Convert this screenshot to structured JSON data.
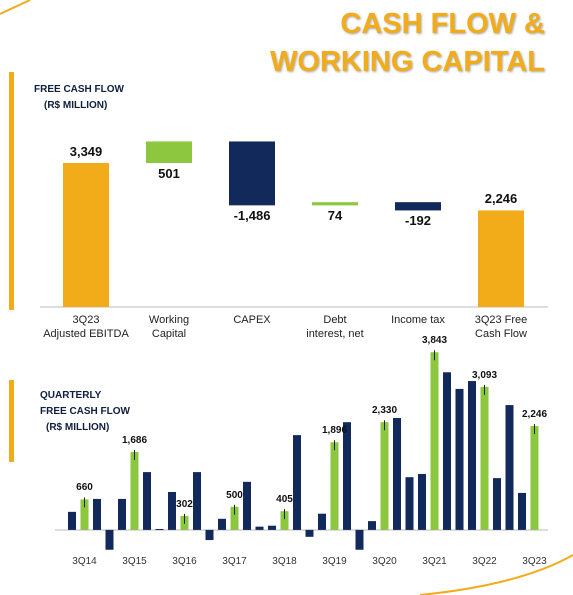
{
  "title": "CASH FLOW &\nWORKING CAPITAL",
  "chart_data": [
    {
      "type": "waterfall",
      "title": "FREE CASH FLOW",
      "subtitle": "(R$ MILLION)",
      "categories": [
        "3Q23\nAdjusted EBITDA",
        "Working\nCapital",
        "CAPEX",
        "Debt\ninterest, net",
        "Income tax",
        "3Q23 Free\nCash Flow"
      ],
      "values": [
        3349,
        501,
        -1486,
        74,
        -192,
        2246
      ],
      "value_labels": [
        "3,349",
        "501",
        "-1,486",
        "74",
        "-192",
        "2,246"
      ],
      "colors": {
        "total": "#f2ac19",
        "increase": "#8dc63f",
        "decrease": "#12295b"
      },
      "ylim": [
        0,
        4000
      ]
    },
    {
      "type": "bar",
      "title": "QUARTERLY\nFREE CASH FLOW",
      "subtitle": "(R$ MILLION)",
      "categories": [
        null,
        "3Q14",
        null,
        null,
        null,
        "3Q15",
        null,
        null,
        null,
        "3Q16",
        null,
        null,
        null,
        "3Q17",
        null,
        null,
        null,
        "3Q18",
        null,
        null,
        null,
        "3Q19",
        null,
        null,
        null,
        "3Q20",
        null,
        null,
        null,
        "3Q21",
        null,
        null,
        null,
        "3Q22",
        null,
        null,
        null,
        "3Q23"
      ],
      "values": [
        390,
        660,
        670,
        -430,
        670,
        1686,
        1250,
        20,
        820,
        302,
        1250,
        -220,
        240,
        500,
        1040,
        70,
        90,
        405,
        2050,
        -150,
        350,
        1896,
        2330,
        -430,
        190,
        2330,
        2420,
        1140,
        1210,
        3843,
        3410,
        3050,
        3220,
        3093,
        1120,
        2700,
        800,
        2246
      ],
      "value_labels": [
        null,
        "660",
        null,
        null,
        null,
        "1,686",
        null,
        null,
        null,
        "302",
        null,
        null,
        null,
        "500",
        null,
        null,
        null,
        "405",
        null,
        null,
        null,
        "1,896",
        null,
        null,
        null,
        "2,330",
        null,
        null,
        null,
        "3,843",
        null,
        null,
        null,
        "3,093",
        null,
        null,
        null,
        "2,246"
      ],
      "colors": [
        "#12295b",
        "#8dc63f",
        "#12295b",
        "#12295b",
        "#12295b",
        "#8dc63f",
        "#12295b",
        "#12295b",
        "#12295b",
        "#8dc63f",
        "#12295b",
        "#12295b",
        "#12295b",
        "#8dc63f",
        "#12295b",
        "#12295b",
        "#12295b",
        "#8dc63f",
        "#12295b",
        "#12295b",
        "#12295b",
        "#8dc63f",
        "#12295b",
        "#12295b",
        "#12295b",
        "#8dc63f",
        "#12295b",
        "#12295b",
        "#12295b",
        "#8dc63f",
        "#12295b",
        "#12295b",
        "#12295b",
        "#8dc63f",
        "#12295b",
        "#12295b",
        "#12295b",
        "#8dc63f"
      ],
      "ylim": [
        -500,
        4000
      ]
    }
  ]
}
